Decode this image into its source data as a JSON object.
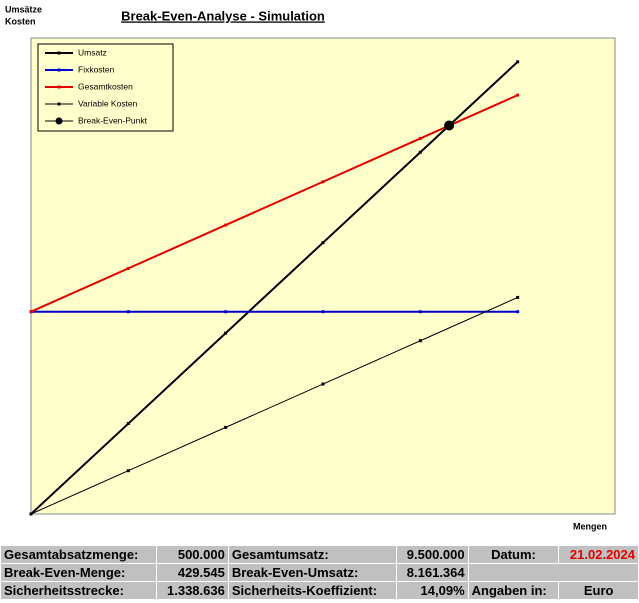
{
  "chart_data": {
    "type": "line",
    "title": "Break-Even-Analyse - Simulation",
    "y_label": [
      "Umsätze",
      "Kosten"
    ],
    "x_label": "Mengen",
    "x": [
      0,
      100000,
      200000,
      300000,
      400000,
      500000
    ],
    "xlim": [
      0,
      600000
    ],
    "ylim": [
      0,
      10000000
    ],
    "series": [
      {
        "name": "Umsatz",
        "color": "#000000",
        "values": [
          0,
          1900000,
          3800000,
          5700000,
          7600000,
          9500000
        ]
      },
      {
        "name": "Fixkosten",
        "color": "#0000cc",
        "values": [
          4250000,
          4250000,
          4250000,
          4250000,
          4250000,
          4250000
        ]
      },
      {
        "name": "Gesamtkosten",
        "color": "#e00000",
        "values": [
          4250000,
          5160000,
          6070000,
          6980000,
          7890000,
          8800000
        ]
      },
      {
        "name": "Variable Kosten",
        "color": "#000000",
        "values": [
          0,
          910000,
          1820000,
          2730000,
          3640000,
          4550000
        ]
      },
      {
        "name": "Break-Even-Punkt",
        "color": "#000000",
        "x": [
          429545
        ],
        "values": [
          8161364
        ]
      }
    ]
  },
  "table": {
    "rows": [
      [
        "Gesamtabsatzmenge:",
        "500.000",
        "Gesamtumsatz:",
        "9.500.000",
        "Datum:",
        "21.02.2024"
      ],
      [
        "Break-Even-Menge:",
        "429.545",
        "Break-Even-Umsatz:",
        "8.161.364"
      ],
      [
        "Sicherheitsstrecke:",
        "1.338.636",
        "Sicherheits-Koeffizient:",
        "14,09%",
        "Angaben in:",
        "Euro"
      ]
    ]
  }
}
